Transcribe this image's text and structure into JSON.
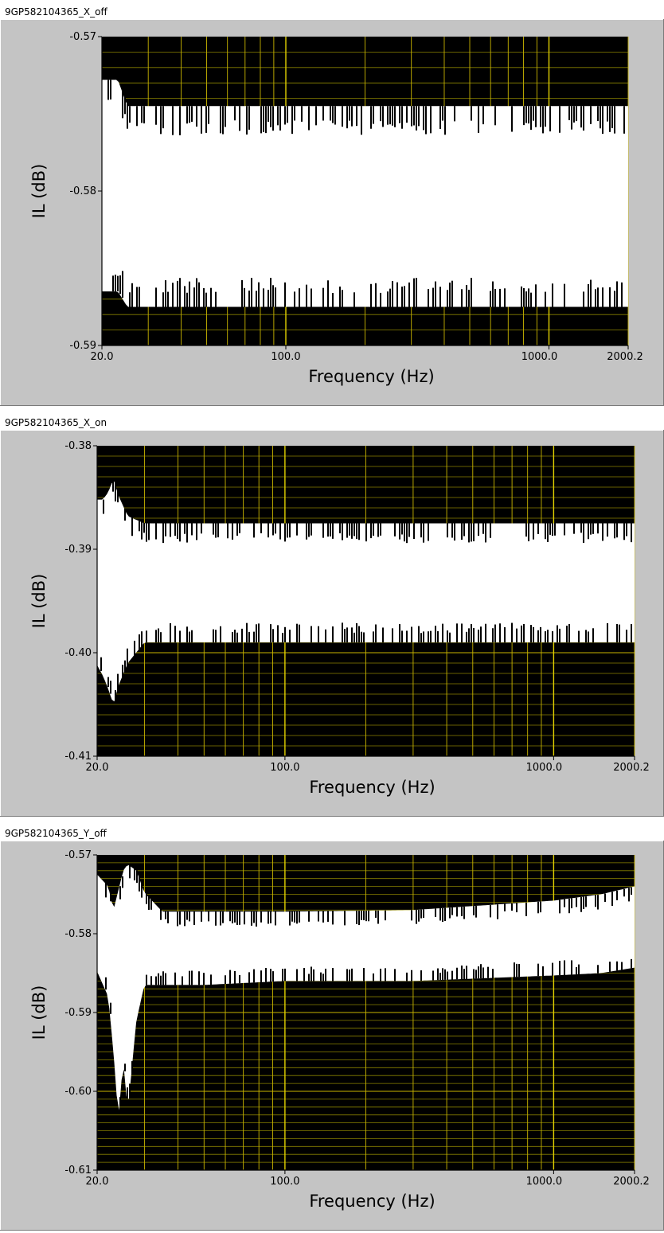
{
  "colors": {
    "panel": "#c4c4c4",
    "plot_bg": "#000000",
    "grid_major": "#c8b400",
    "grid_minor": "#8a8200",
    "band": "#ffffff"
  },
  "chart_data": [
    {
      "type": "line",
      "title": "9GP582104365_X_off",
      "xlabel": "Frequency (Hz)",
      "ylabel": "IL (dB)",
      "xscale": "log",
      "xlim": [
        20.0,
        2000.2
      ],
      "ylim": [
        -0.59,
        -0.57
      ],
      "yticks": [
        "-0.57",
        "-0.58",
        "-0.59"
      ],
      "xticks": [
        "20.0",
        "100.0",
        "1000.0",
        "2000.2"
      ],
      "series": [
        {
          "values_x": [
            20,
            23,
            25,
            30,
            50,
            100,
            300,
            1000,
            2000.2
          ],
          "upper": [
            -0.5728,
            -0.5728,
            -0.5745,
            -0.5745,
            -0.5745,
            -0.5745,
            -0.5745,
            -0.5745,
            -0.5745
          ],
          "lower": [
            -0.5865,
            -0.5865,
            -0.5875,
            -0.5875,
            -0.5875,
            -0.5875,
            -0.5875,
            -0.5875,
            -0.5875
          ]
        }
      ]
    },
    {
      "type": "line",
      "title": "9GP582104365_X_on",
      "xlabel": "Frequency (Hz)",
      "ylabel": "IL (dB)",
      "xscale": "log",
      "xlim": [
        20.0,
        2000.2
      ],
      "ylim": [
        -0.41,
        -0.38
      ],
      "yticks": [
        "-0.38",
        "-0.39",
        "-0.40",
        "-0.41"
      ],
      "xticks": [
        "20.0",
        "100.0",
        "1000.0",
        "2000.2"
      ],
      "series": [
        {
          "values_x": [
            20,
            21,
            22,
            23,
            24,
            26,
            30,
            40,
            100,
            1000,
            2000.2
          ],
          "upper": [
            -0.3852,
            -0.3852,
            -0.3845,
            -0.3832,
            -0.3848,
            -0.3868,
            -0.3875,
            -0.3875,
            -0.3875,
            -0.3875,
            -0.3875
          ],
          "lower": [
            -0.4012,
            -0.4022,
            -0.4035,
            -0.405,
            -0.4032,
            -0.401,
            -0.399,
            -0.399,
            -0.399,
            -0.399,
            -0.399
          ]
        }
      ]
    },
    {
      "type": "line",
      "title": "9GP582104365_Y_off",
      "xlabel": "Frequency (Hz)",
      "ylabel": "IL (dB)",
      "xscale": "log",
      "xlim": [
        20.0,
        2000.2
      ],
      "ylim": [
        -0.61,
        -0.57
      ],
      "yticks": [
        "-0.57",
        "-0.58",
        "-0.59",
        "-0.60",
        "-0.61"
      ],
      "xticks": [
        "20.0",
        "100.0",
        "1000.0",
        "2000.2"
      ],
      "series": [
        {
          "values_x": [
            20,
            22,
            23,
            24,
            25,
            26,
            28,
            30,
            35,
            50,
            100,
            300,
            1000,
            1500,
            2000.2
          ],
          "upper": [
            -0.5725,
            -0.574,
            -0.577,
            -0.5745,
            -0.572,
            -0.5712,
            -0.572,
            -0.5748,
            -0.5772,
            -0.5772,
            -0.5772,
            -0.577,
            -0.5758,
            -0.575,
            -0.574
          ],
          "lower": [
            -0.5848,
            -0.588,
            -0.595,
            -0.6035,
            -0.596,
            -0.6025,
            -0.591,
            -0.5865,
            -0.5865,
            -0.5865,
            -0.586,
            -0.586,
            -0.5853,
            -0.585,
            -0.5843
          ]
        }
      ]
    }
  ]
}
